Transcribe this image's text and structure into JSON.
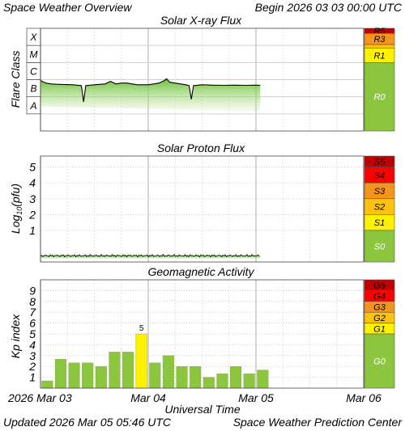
{
  "header": {
    "title": "Space Weather Overview",
    "begin": "Begin 2026 03 03 00:00 UTC"
  },
  "footer": {
    "updated": "Updated 2026 Mar 05 05:46 UTC",
    "center": "Space Weather Prediction Center",
    "x_title": "Universal Time"
  },
  "x_axis": {
    "tick_labels": [
      "2026 Mar 03",
      "Mar 04",
      "Mar 05",
      "Mar 06"
    ],
    "range_days": [
      0,
      3
    ]
  },
  "colors": {
    "gray": "#ababab",
    "green": "#8cc63f",
    "yellow": "#fff200",
    "gold": "#ffc20e",
    "orange": "#f7941d",
    "red": "#ff0000",
    "darkred": "#c00000",
    "kp_bar": "#8cc63f",
    "kp_bar_highlight": "#fff200",
    "trace": "#000000"
  },
  "chart_data": [
    {
      "type": "line",
      "title": "Solar X-ray Flux",
      "ylabel": "Flare Class",
      "y_tick_labels": [
        "X",
        "M",
        "C",
        "B",
        "A"
      ],
      "ylim": [
        -9,
        -3
      ],
      "y_units": "log10 W/m^2",
      "data_end_days": 2.04,
      "x_days": [
        0,
        0.05,
        0.1,
        0.15,
        0.2,
        0.3,
        0.38,
        0.4,
        0.42,
        0.5,
        0.6,
        0.65,
        0.7,
        0.75,
        0.8,
        0.85,
        0.9,
        0.95,
        1.0,
        1.05,
        1.1,
        1.15,
        1.17,
        1.2,
        1.25,
        1.3,
        1.35,
        1.38,
        1.4,
        1.42,
        1.5,
        1.6,
        1.7,
        1.8,
        1.9,
        2.0,
        2.04
      ],
      "y_log10": [
        -6.05,
        -6.2,
        -6.25,
        -6.27,
        -6.28,
        -6.3,
        -6.35,
        -7.3,
        -6.35,
        -6.3,
        -6.25,
        -6.1,
        -6.25,
        -6.2,
        -6.2,
        -6.25,
        -6.3,
        -6.3,
        -6.3,
        -6.25,
        -6.2,
        -6.05,
        -5.95,
        -6.15,
        -6.2,
        -6.25,
        -6.3,
        -6.35,
        -7.15,
        -6.35,
        -6.3,
        -6.32,
        -6.33,
        -6.32,
        -6.33,
        -6.32,
        -6.33
      ],
      "scale_labels": [
        "R5",
        "R3",
        "R1",
        "R0"
      ],
      "scale": [
        {
          "label": "R5",
          "color": "darkred",
          "from": -3.3,
          "to": -3
        },
        {
          "label": "R3",
          "color": "orange",
          "from": -3.95,
          "to": -3.3
        },
        {
          "label": "",
          "color": "gold",
          "from": -4.15,
          "to": -3.95
        },
        {
          "label": "R1",
          "color": "yellow",
          "from": -5,
          "to": -4.15
        },
        {
          "label": "R0",
          "color": "green",
          "from": -9,
          "to": -5
        }
      ]
    },
    {
      "type": "line",
      "title": "Solar Proton Flux",
      "ylabel": "Log10(pfu)",
      "ylabel_main": "Log",
      "ylabel_sub": "10",
      "ylabel_tail": "(pfu)",
      "y_tick_labels": [
        "5",
        "4",
        "3",
        "2",
        "1"
      ],
      "y_ticks": [
        5,
        4,
        3,
        2,
        1
      ],
      "ylim": [
        -1,
        5.7
      ],
      "data_end_days": 2.04,
      "baseline_log10": -0.6,
      "scale_labels": [
        "S5",
        "S4",
        "S3",
        "S2",
        "S1",
        "S0"
      ],
      "scale": [
        {
          "label": "S5",
          "color": "darkred",
          "from": 5,
          "to": 5.7
        },
        {
          "label": "S4",
          "color": "red",
          "from": 4,
          "to": 5
        },
        {
          "label": "S3",
          "color": "orange",
          "from": 3,
          "to": 4
        },
        {
          "label": "S2",
          "color": "gold",
          "from": 2,
          "to": 3
        },
        {
          "label": "S1",
          "color": "yellow",
          "from": 1,
          "to": 2
        },
        {
          "label": "S0",
          "color": "green",
          "from": -1,
          "to": 1
        }
      ]
    },
    {
      "type": "bar",
      "title": "Geomagnetic Activity",
      "ylabel": "Kp index",
      "y_tick_labels": [
        "9",
        "8",
        "7",
        "6",
        "5",
        "4",
        "3",
        "2",
        "1"
      ],
      "y_ticks": [
        9,
        8,
        7,
        6,
        5,
        4,
        3,
        2,
        1
      ],
      "ylim": [
        0,
        10
      ],
      "bar_width_days": 0.125,
      "values": [
        0.67,
        2.67,
        2.33,
        2.33,
        2.0,
        3.33,
        3.33,
        5.0,
        2.33,
        3.0,
        2.0,
        2.0,
        1.0,
        1.33,
        2.0,
        1.33,
        1.67
      ],
      "annotation": {
        "index": 7,
        "text": "5"
      },
      "scale_labels": [
        "G5",
        "G4",
        "G3",
        "G2",
        "G1",
        "G0"
      ],
      "scale": [
        {
          "label": "G5",
          "color": "darkred",
          "from": 9,
          "to": 10
        },
        {
          "label": "G4",
          "color": "red",
          "from": 8,
          "to": 9
        },
        {
          "label": "G3",
          "color": "orange",
          "from": 7,
          "to": 8
        },
        {
          "label": "G2",
          "color": "gold",
          "from": 6,
          "to": 7
        },
        {
          "label": "G1",
          "color": "yellow",
          "from": 5,
          "to": 6
        },
        {
          "label": "G0",
          "color": "green",
          "from": 0,
          "to": 5
        }
      ]
    }
  ]
}
